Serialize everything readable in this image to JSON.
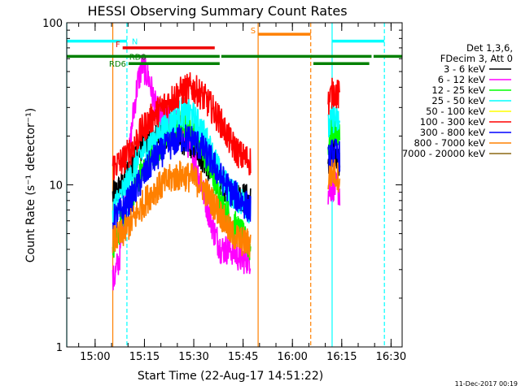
{
  "chart_data": {
    "type": "line",
    "title": "HESSI Observing Summary Count Rates",
    "xlabel": "Start Time (22-Aug-17 14:51:22)",
    "ylabel": "Count Rate (s⁻¹ detector⁻¹)",
    "yscale": "log",
    "ylim": [
      1,
      100
    ],
    "xlim_minutes": [
      0,
      102
    ],
    "x_tick_labels": [
      "15:00",
      "15:15",
      "15:30",
      "15:45",
      "16:00",
      "16:15",
      "16:30"
    ],
    "x_tick_minutes": [
      8.63,
      23.63,
      38.63,
      53.63,
      68.63,
      83.63,
      98.63
    ],
    "y_tick_labels": [
      "1",
      "10",
      "100"
    ],
    "y_tick_values": [
      1,
      10,
      100
    ],
    "legend": {
      "placement": "right",
      "header_lines": [
        "Det 1,3,6,",
        "FDecim 3, Att 0"
      ],
      "entries": [
        {
          "label": "3 - 6 keV",
          "color": "#000000"
        },
        {
          "label": "6 - 12 keV",
          "color": "#ff00ff"
        },
        {
          "label": "12 - 25 keV",
          "color": "#00ff00"
        },
        {
          "label": "25 - 50 keV",
          "color": "#00ffff"
        },
        {
          "label": "50 - 100 keV",
          "color": "#ffff00"
        },
        {
          "label": "100 - 300 keV",
          "color": "#ff0000"
        },
        {
          "label": "300 - 800 keV",
          "color": "#0000ff"
        },
        {
          "label": "800 - 7000 keV",
          "color": "#ff8000"
        },
        {
          "label": "7000 - 20000 keV",
          "color": "#8b6914"
        }
      ]
    },
    "flag_bars": [
      {
        "label": "N",
        "color": "#00ffff",
        "y": 77,
        "segments": [
          [
            0,
            18.3
          ],
          [
            80.7,
            96.6
          ]
        ]
      },
      {
        "label": "F",
        "color": "#ee0000",
        "y": 70,
        "segments": [
          [
            17,
            45
          ]
        ]
      },
      {
        "label": "S",
        "color": "#ff8000",
        "y": 85,
        "segments": [
          [
            58.2,
            74.2
          ]
        ]
      },
      {
        "label": "RD0",
        "color": "#008000",
        "y": 62,
        "segments": [
          [
            0,
            46.5
          ],
          [
            47,
            74.5
          ],
          [
            74.3,
            92.7
          ],
          [
            93.3,
            102
          ]
        ]
      },
      {
        "label": "RD6",
        "color": "#008000",
        "y": 56,
        "segments": [
          [
            18.8,
            46.5
          ],
          [
            75,
            92
          ]
        ]
      }
    ],
    "vertical_markers": [
      {
        "color": "#00ffff",
        "style": "solid",
        "x": 0
      },
      {
        "color": "#00ffff",
        "style": "dashed",
        "x": 18.3
      },
      {
        "color": "#00ffff",
        "style": "solid",
        "x": 80.7
      },
      {
        "color": "#00ffff",
        "style": "dashed",
        "x": 96.6
      },
      {
        "color": "#ff8000",
        "style": "solid",
        "x": 14.0
      },
      {
        "color": "#ff8000",
        "style": "solid",
        "x": 58.2
      },
      {
        "color": "#ff8000",
        "style": "dashed",
        "x": 74.2
      }
    ],
    "data_windows": [
      [
        14.0,
        56.0
      ],
      [
        79.5,
        83.0
      ]
    ],
    "series": [
      {
        "name": "3 - 6 keV",
        "color": "#000000",
        "x": [
          14,
          17,
          20,
          23,
          26,
          29,
          32,
          35,
          38,
          41,
          44,
          47,
          50,
          53,
          56,
          79.5,
          81,
          83
        ],
        "values": [
          8.5,
          10,
          14,
          18,
          19,
          20,
          20,
          19,
          18,
          15,
          12,
          10,
          9,
          8.5,
          8,
          12,
          16,
          14
        ]
      },
      {
        "name": "6 - 12 keV",
        "color": "#ff00ff",
        "x": [
          14,
          16,
          18,
          20,
          21.5,
          23,
          25,
          27,
          29,
          31,
          33,
          35,
          37,
          39,
          41,
          43,
          45,
          47,
          50,
          53,
          56,
          79.5,
          81,
          83
        ],
        "values": [
          2.5,
          3.5,
          9,
          25,
          42,
          55,
          45,
          30,
          25,
          25,
          24,
          22,
          18,
          14,
          10,
          7,
          5,
          4,
          4,
          3.5,
          3.5,
          9,
          10,
          9
        ]
      },
      {
        "name": "12 - 25 keV",
        "color": "#00ff00",
        "x": [
          14,
          17,
          20,
          23,
          26,
          29,
          32,
          35,
          38,
          41,
          44,
          47,
          50,
          53,
          56,
          79.5,
          81,
          83
        ],
        "values": [
          4,
          6,
          9,
          12,
          15,
          18,
          21,
          24,
          22,
          18,
          12,
          8,
          6,
          5,
          4,
          18,
          22,
          20
        ]
      },
      {
        "name": "25 - 50 keV",
        "color": "#00ffff",
        "x": [
          14,
          17,
          20,
          23,
          26,
          29,
          32,
          35,
          38,
          41,
          44,
          47,
          50,
          53,
          56,
          79.5,
          81,
          83
        ],
        "values": [
          7,
          9,
          12,
          16,
          19,
          22,
          25,
          28,
          27,
          22,
          16,
          11,
          9,
          8,
          7,
          22,
          26,
          24
        ]
      },
      {
        "name": "100 - 300 keV",
        "color": "#ff0000",
        "x": [
          14,
          17,
          20,
          23,
          26,
          29,
          32,
          35,
          38,
          41,
          44,
          47,
          50,
          53,
          56,
          79.5,
          81,
          83
        ],
        "values": [
          13,
          14,
          17,
          22,
          26,
          30,
          34,
          38,
          40,
          36,
          30,
          24,
          18,
          15,
          14,
          32,
          38,
          35
        ]
      },
      {
        "name": "300 - 800 keV",
        "color": "#0000ff",
        "x": [
          14,
          17,
          20,
          23,
          26,
          29,
          32,
          35,
          38,
          41,
          44,
          47,
          50,
          53,
          56,
          79.5,
          81,
          83
        ],
        "values": [
          6,
          7,
          8.5,
          11,
          14,
          16,
          18,
          19.5,
          19,
          17,
          14,
          11,
          9,
          8,
          7,
          14,
          16,
          15
        ]
      },
      {
        "name": "800 - 7000 keV",
        "color": "#ff8000",
        "x": [
          14,
          17,
          20,
          23,
          26,
          29,
          32,
          35,
          38,
          41,
          44,
          47,
          50,
          53,
          56,
          79.5,
          81,
          83
        ],
        "values": [
          4.5,
          5,
          6,
          7.5,
          9,
          10,
          11,
          11.5,
          11,
          10,
          8,
          6.5,
          5,
          4.5,
          4.3,
          11,
          12,
          11
        ]
      }
    ]
  },
  "footer": {
    "timestamp": "11-Dec-2017 00:19"
  }
}
